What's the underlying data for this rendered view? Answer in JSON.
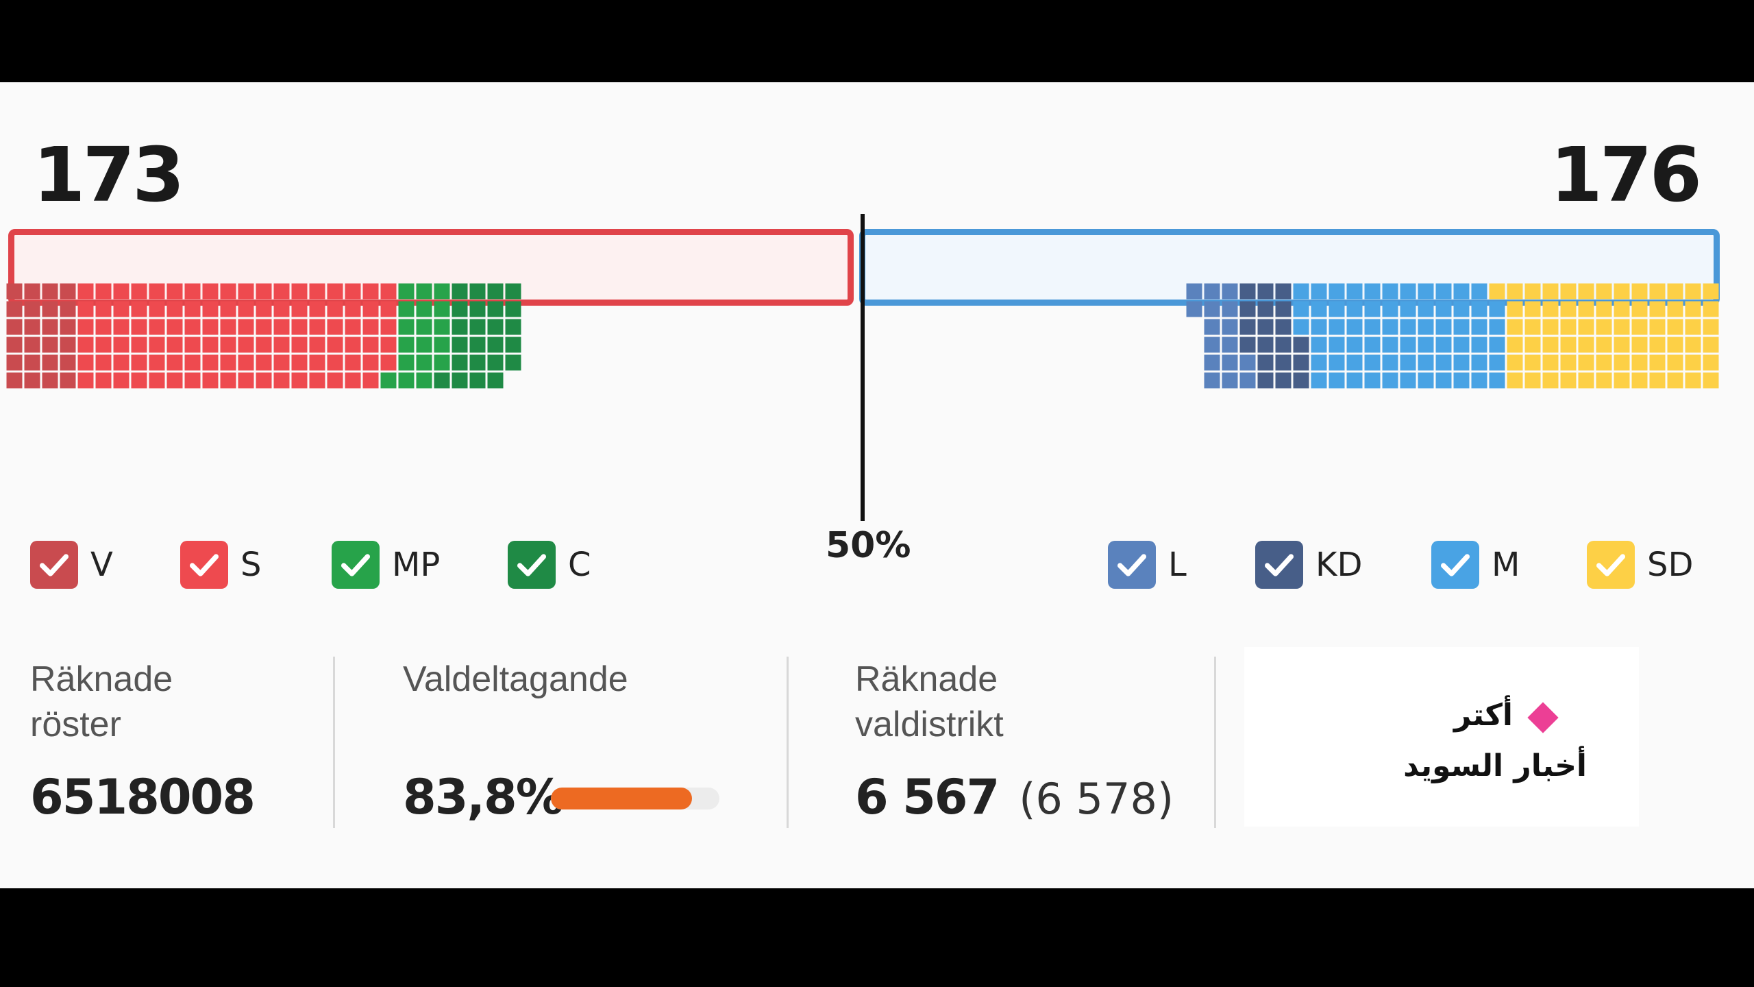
{
  "header": {
    "left_total": "173",
    "right_total": "176",
    "majority_label": "50%"
  },
  "colors": {
    "left_bloc": "#e0444a",
    "right_bloc": "#4a98d8",
    "V": "#c94b4f",
    "S": "#ee4a4f",
    "MP": "#27a34a",
    "C": "#1f8a45",
    "L": "#5a82bd",
    "KD": "#475e88",
    "M": "#49a3e4",
    "SD": "#fdd046",
    "turnout_bar": "#ed6a22",
    "logo_diamond": "#ec3f95"
  },
  "parties": [
    {
      "key": "V",
      "label": "V",
      "seats": 24,
      "checked": true
    },
    {
      "key": "S",
      "label": "S",
      "seats": 107,
      "checked": true
    },
    {
      "key": "MP",
      "label": "MP",
      "seats": 18,
      "checked": true
    },
    {
      "key": "C",
      "label": "C",
      "seats": 24,
      "checked": true
    },
    {
      "key": "L",
      "label": "L",
      "seats": 16,
      "checked": true
    },
    {
      "key": "KD",
      "label": "KD",
      "seats": 19,
      "checked": true
    },
    {
      "key": "M",
      "label": "M",
      "seats": 68,
      "checked": true
    },
    {
      "key": "SD",
      "label": "SD",
      "seats": 73,
      "checked": true
    }
  ],
  "stats": {
    "counted_votes_label": "Räknade\nröster",
    "counted_votes_value": "6518008",
    "turnout_label": "Valdeltagande",
    "turnout_value": "83,8%",
    "turnout_fraction": 0.838,
    "districts_label": "Räknade\nvaldistrikt",
    "districts_value": "6 567",
    "districts_total": "(6 578)"
  },
  "logo": {
    "line1": "أكتر",
    "line2": "أخبار السويد"
  }
}
